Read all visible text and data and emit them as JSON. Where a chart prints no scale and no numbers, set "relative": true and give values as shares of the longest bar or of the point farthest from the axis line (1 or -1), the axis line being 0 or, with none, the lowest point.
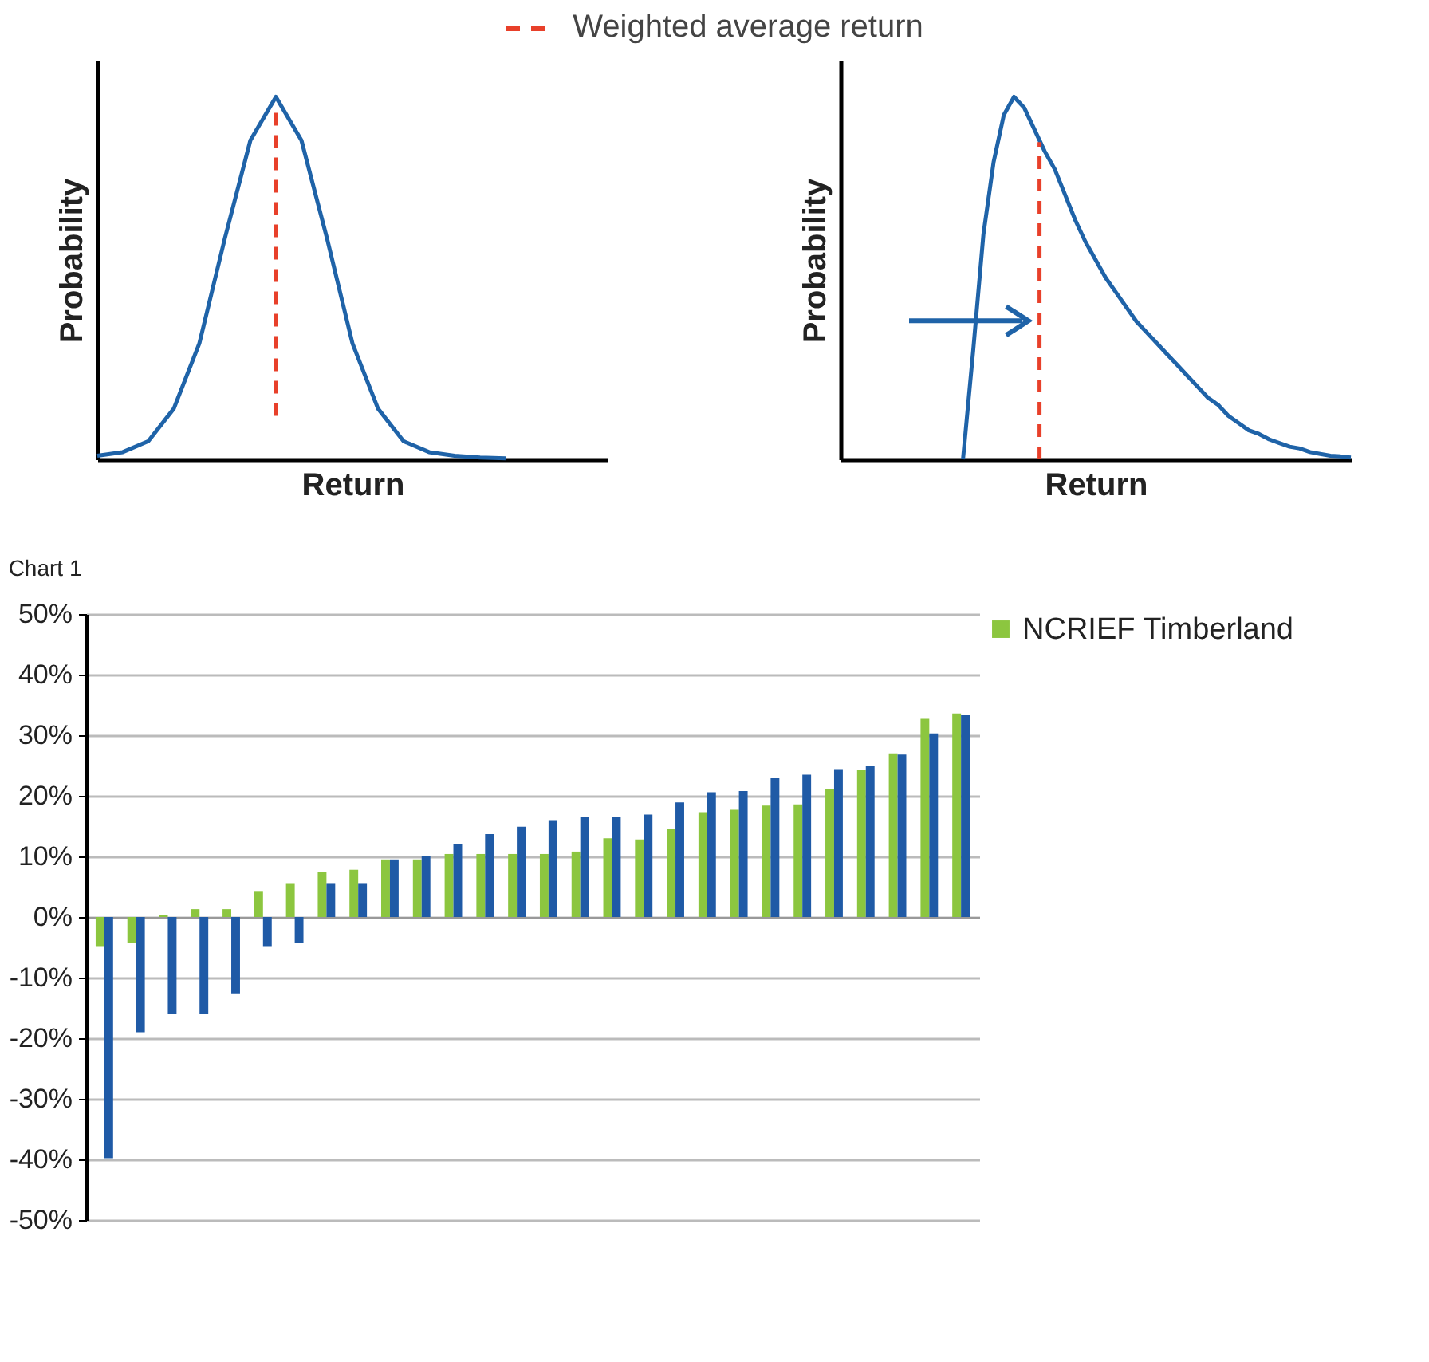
{
  "chart_data": [
    {
      "type": "line",
      "xlabel": "Return",
      "ylabel": "Probability",
      "relative": true,
      "marker": "none",
      "annotations": [
        "Weighted average return"
      ],
      "categories": [
        null,
        null,
        null,
        null,
        null,
        null,
        null,
        null,
        null,
        null,
        null,
        null,
        null,
        null,
        null,
        null,
        null,
        null,
        null,
        null,
        null
      ],
      "series": [
        {
          "color": "#1f63a8",
          "values": [
            0.01,
            0.02,
            0.05,
            0.14,
            0.32,
            0.61,
            0.88,
            1,
            0.88,
            0.61,
            0.32,
            0.14,
            0.05,
            0.02,
            0.01,
            0.005,
            0.003,
            null,
            null,
            null,
            null
          ]
        }
      ]
    },
    {
      "type": "line",
      "xlabel": "Return",
      "ylabel": "Probability",
      "relative": true,
      "marker": "none",
      "categories": [
        null,
        null,
        null,
        null,
        null,
        null,
        null,
        null,
        null,
        null,
        null,
        null,
        null,
        null,
        null,
        null,
        null,
        null,
        null,
        null,
        null,
        null,
        null,
        null,
        null,
        null,
        null,
        null,
        null,
        null,
        null,
        null,
        null,
        null,
        null,
        null,
        null,
        null,
        null,
        null,
        null,
        null,
        null,
        null,
        null,
        null,
        null,
        null,
        null,
        null,
        null
      ],
      "series": [
        {
          "color": "#1f63a8",
          "values": [
            null,
            null,
            null,
            null,
            null,
            null,
            null,
            null,
            null,
            null,
            null,
            null,
            0,
            0.3,
            0.62,
            0.82,
            0.95,
            1,
            0.97,
            0.91,
            0.85,
            0.8,
            0.73,
            0.66,
            0.6,
            0.55,
            0.5,
            0.46,
            0.42,
            0.38,
            0.35,
            0.32,
            0.29,
            0.26,
            0.23,
            0.2,
            0.17,
            0.15,
            0.12,
            0.1,
            0.08,
            0.07,
            0.055,
            0.045,
            0.035,
            0.03,
            0.02,
            0.015,
            0.01,
            0.008,
            0.005
          ]
        }
      ]
    },
    {
      "type": "bar",
      "title": "Chart 1",
      "categories": [
        null,
        null,
        null,
        null,
        null,
        null,
        null,
        null,
        null,
        null,
        null,
        null,
        null,
        null,
        null,
        null,
        null,
        null,
        null,
        null,
        null,
        null,
        null,
        null,
        null,
        null,
        null,
        null
      ],
      "ylim": [
        -50,
        50
      ],
      "yticks": [
        {
          "value": -50,
          "label": "-50%"
        },
        {
          "value": -40,
          "label": "-40%"
        },
        {
          "value": -30,
          "label": "-30%"
        },
        {
          "value": -20,
          "label": "-20%"
        },
        {
          "value": -10,
          "label": "-10%"
        },
        {
          "value": 0,
          "label": "0%"
        },
        {
          "value": 10,
          "label": "10%"
        },
        {
          "value": 20,
          "label": "20%"
        },
        {
          "value": 30,
          "label": "30%"
        },
        {
          "value": 40,
          "label": "40%"
        },
        {
          "value": 50,
          "label": "50%"
        }
      ],
      "grid": "y",
      "legend": "right",
      "series": [
        {
          "name": "NCRIEF Timberland",
          "color": "#8cc63f",
          "values": [
            -4.8,
            -4.3,
            0.3,
            1.3,
            1.3,
            4.3,
            5.6,
            7.4,
            7.8,
            9.5,
            9.5,
            10.4,
            10.4,
            10.4,
            10.4,
            10.8,
            13,
            12.8,
            14.5,
            17.3,
            17.7,
            18.4,
            18.6,
            21.2,
            24.2,
            27,
            32.7,
            33.6
          ]
        },
        {
          "color": "#1f5aa6",
          "values": [
            -39.8,
            -19,
            -16,
            -16,
            -12.6,
            -4.8,
            -4.3,
            5.6,
            5.6,
            9.5,
            10,
            12.1,
            13.7,
            14.9,
            16,
            16.5,
            16.5,
            16.9,
            18.9,
            20.6,
            20.8,
            22.9,
            23.5,
            24.4,
            24.9,
            26.8,
            30.3,
            33.3
          ]
        }
      ]
    }
  ]
}
